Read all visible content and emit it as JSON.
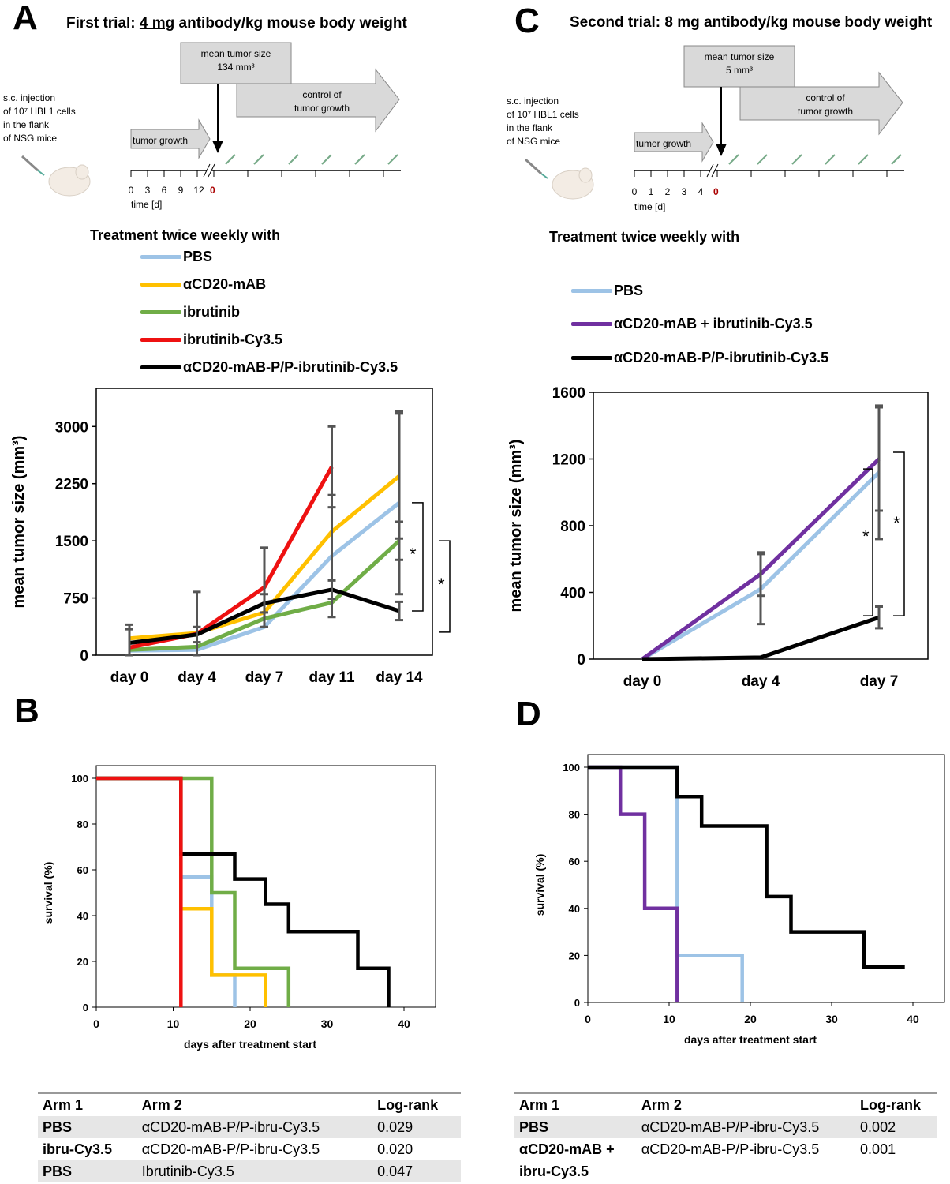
{
  "panels": {
    "A": "A",
    "B": "B",
    "C": "C",
    "D": "D"
  },
  "colors": {
    "pbs": "#9dc3e6",
    "acd20": "#ffc000",
    "ibrutinib": "#70ad47",
    "ibru_cy": "#ee1111",
    "conjugate": "#000000",
    "combo": "#7030a0",
    "error": "#555555"
  },
  "schemeA": {
    "title_pre": "First trial: ",
    "title_ul": "4 mg",
    "title_post": " antibody/kg mouse body weight",
    "injection_lines": [
      "s.c. injection",
      "of 10⁷ HBL1 cells",
      "in the flank",
      "of NSG mice"
    ],
    "mean_box_lines": [
      "mean tumor size",
      "134 mm³"
    ],
    "control_lines": [
      "control of",
      "tumor growth"
    ],
    "tumor_growth": "tumor growth",
    "ticks": [
      "0",
      "3",
      "6",
      "9",
      "12"
    ],
    "zero": "0",
    "time_label": "time [d]"
  },
  "schemeC": {
    "title_pre": "Second trial: ",
    "title_ul": "8 mg",
    "title_post": " antibody/kg mouse body weight",
    "injection_lines": [
      "s.c. injection",
      "of 10⁷ HBL1 cells",
      "in the flank",
      "of NSG mice"
    ],
    "mean_box_lines": [
      "mean tumor size",
      "5 mm³"
    ],
    "control_lines": [
      "control of",
      "tumor growth"
    ],
    "tumor_growth": "tumor growth",
    "ticks": [
      "0",
      "1",
      "2",
      "3",
      "4"
    ],
    "zero": "0",
    "time_label": "time [d]"
  },
  "treatment_heading": "Treatment twice weekly with",
  "legendA": [
    "PBS",
    "αCD20-mAB",
    "ibrutinib",
    "ibrutinib-Cy3.5",
    "αCD20-mAB-P/P-ibrutinib-Cy3.5"
  ],
  "legendC": [
    "PBS",
    "αCD20-mAB + ibrutinib-Cy3.5",
    "αCD20-mAB-P/P-ibrutinib-Cy3.5"
  ],
  "chart_data": [
    {
      "panel": "A",
      "type": "line",
      "ylabel": "mean tumor size (mm³)",
      "categories": [
        "day 0",
        "day 4",
        "day 7",
        "day 11",
        "day 14"
      ],
      "ylim": [
        0,
        3500
      ],
      "yticks": [
        0,
        750,
        1500,
        2250,
        3000
      ],
      "series": [
        {
          "name": "PBS",
          "values": [
            60,
            70,
            370,
            1300,
            2000
          ],
          "errors": [
            null,
            null,
            null,
            800,
            1200
          ]
        },
        {
          "name": "αCD20-mAB",
          "values": [
            220,
            290,
            560,
            1620,
            2350
          ],
          "errors": [
            null,
            null,
            null,
            null,
            820
          ]
        },
        {
          "name": "ibrutinib",
          "values": [
            70,
            110,
            480,
            690,
            1500
          ],
          "errors": [
            null,
            null,
            null,
            null,
            250
          ]
        },
        {
          "name": "ibrutinib-Cy3.5",
          "values": [
            100,
            280,
            890,
            2470,
            null
          ],
          "errors": [
            300,
            550,
            520,
            530,
            null
          ]
        },
        {
          "name": "αCD20-mAB-P/P-ibrutinib-Cy3.5",
          "values": [
            160,
            270,
            680,
            860,
            580
          ],
          "errors": [
            180,
            100,
            120,
            120,
            120
          ]
        }
      ],
      "significance": [
        "*",
        "*"
      ]
    },
    {
      "panel": "C",
      "type": "line",
      "ylabel": "mean tumor size (mm³)",
      "categories": [
        "day 0",
        "day 4",
        "day 7"
      ],
      "ylim": [
        0,
        1600
      ],
      "yticks": [
        0,
        400,
        800,
        1200,
        1600
      ],
      "series": [
        {
          "name": "PBS",
          "values": [
            0,
            420,
            1120
          ],
          "errors": [
            null,
            210,
            400
          ]
        },
        {
          "name": "αCD20-mAB + ibrutinib-Cy3.5",
          "values": [
            0,
            510,
            1200
          ],
          "errors": [
            null,
            130,
            310
          ]
        },
        {
          "name": "αCD20-mAB-P/P-ibrutinib-Cy3.5",
          "values": [
            0,
            10,
            250
          ],
          "errors": [
            null,
            null,
            65
          ]
        }
      ],
      "significance": [
        "*",
        "*"
      ]
    },
    {
      "panel": "B",
      "type": "line",
      "subtype": "kaplan-meier",
      "xlabel": "days after treatment start",
      "ylabel": "survival (%)",
      "xlim": [
        0,
        40
      ],
      "ylim": [
        0,
        100
      ],
      "xticks": [
        0,
        10,
        20,
        30,
        40
      ],
      "yticks": [
        0,
        20,
        40,
        60,
        80,
        100
      ],
      "series": [
        {
          "name": "PBS",
          "steps": [
            [
              0,
              100
            ],
            [
              11,
              100
            ],
            [
              11,
              57
            ],
            [
              15,
              57
            ],
            [
              15,
              14
            ],
            [
              18,
              14
            ],
            [
              18,
              0
            ]
          ]
        },
        {
          "name": "αCD20-mAB",
          "steps": [
            [
              0,
              100
            ],
            [
              11,
              100
            ],
            [
              11,
              43
            ],
            [
              15,
              43
            ],
            [
              15,
              14
            ],
            [
              22,
              14
            ],
            [
              22,
              0
            ]
          ]
        },
        {
          "name": "ibrutinib",
          "steps": [
            [
              0,
              100
            ],
            [
              15,
              100
            ],
            [
              15,
              50
            ],
            [
              18,
              50
            ],
            [
              18,
              17
            ],
            [
              25,
              17
            ],
            [
              25,
              0
            ]
          ]
        },
        {
          "name": "ibrutinib-Cy3.5",
          "steps": [
            [
              0,
              100
            ],
            [
              11,
              100
            ],
            [
              11,
              0
            ]
          ]
        },
        {
          "name": "αCD20-mAB-P/P-ibrutinib-Cy3.5",
          "steps": [
            [
              0,
              100
            ],
            [
              11,
              100
            ],
            [
              11,
              67
            ],
            [
              18,
              67
            ],
            [
              18,
              56
            ],
            [
              22,
              56
            ],
            [
              22,
              45
            ],
            [
              25,
              45
            ],
            [
              25,
              33
            ],
            [
              34,
              33
            ],
            [
              34,
              17
            ],
            [
              38,
              17
            ],
            [
              38,
              0
            ]
          ]
        }
      ]
    },
    {
      "panel": "D",
      "type": "line",
      "subtype": "kaplan-meier",
      "xlabel": "days after treatment start",
      "ylabel": "survival (%)",
      "xlim": [
        0,
        40
      ],
      "ylim": [
        0,
        100
      ],
      "xticks": [
        0,
        10,
        20,
        30,
        40
      ],
      "yticks": [
        0,
        20,
        40,
        60,
        80,
        100
      ],
      "series": [
        {
          "name": "PBS",
          "steps": [
            [
              0,
              100
            ],
            [
              11,
              100
            ],
            [
              11,
              20
            ],
            [
              19,
              20
            ],
            [
              19,
              0
            ]
          ]
        },
        {
          "name": "αCD20-mAB + ibrutinib-Cy3.5",
          "steps": [
            [
              0,
              100
            ],
            [
              4,
              100
            ],
            [
              4,
              80
            ],
            [
              7,
              80
            ],
            [
              7,
              40
            ],
            [
              11,
              40
            ],
            [
              11,
              0
            ]
          ]
        },
        {
          "name": "αCD20-mAB-P/P-ibrutinib-Cy3.5",
          "steps": [
            [
              0,
              100
            ],
            [
              11,
              100
            ],
            [
              11,
              87.5
            ],
            [
              14,
              87.5
            ],
            [
              14,
              75
            ],
            [
              22,
              75
            ],
            [
              22,
              45
            ],
            [
              25,
              45
            ],
            [
              25,
              30
            ],
            [
              34,
              30
            ],
            [
              34,
              15
            ],
            [
              39,
              15
            ]
          ]
        }
      ]
    }
  ],
  "tableB": {
    "headers": [
      "Arm 1",
      "Arm 2",
      "Log-rank"
    ],
    "rows": [
      [
        "PBS",
        "αCD20-mAB-P/P-ibru-Cy3.5",
        "0.029"
      ],
      [
        "ibru-Cy3.5",
        "αCD20-mAB-P/P-ibru-Cy3.5",
        "0.020"
      ],
      [
        "PBS",
        "Ibrutinib-Cy3.5",
        "0.047"
      ]
    ]
  },
  "tableD": {
    "headers": [
      "Arm 1",
      "Arm 2",
      "Log-rank"
    ],
    "rows": [
      [
        "PBS",
        "αCD20-mAB-P/P-ibru-Cy3.5",
        "0.002"
      ],
      [
        "αCD20-mAB +",
        "αCD20-mAB-P/P-ibru-Cy3.5",
        "0.001"
      ],
      [
        "ibru-Cy3.5",
        "",
        ""
      ]
    ]
  }
}
